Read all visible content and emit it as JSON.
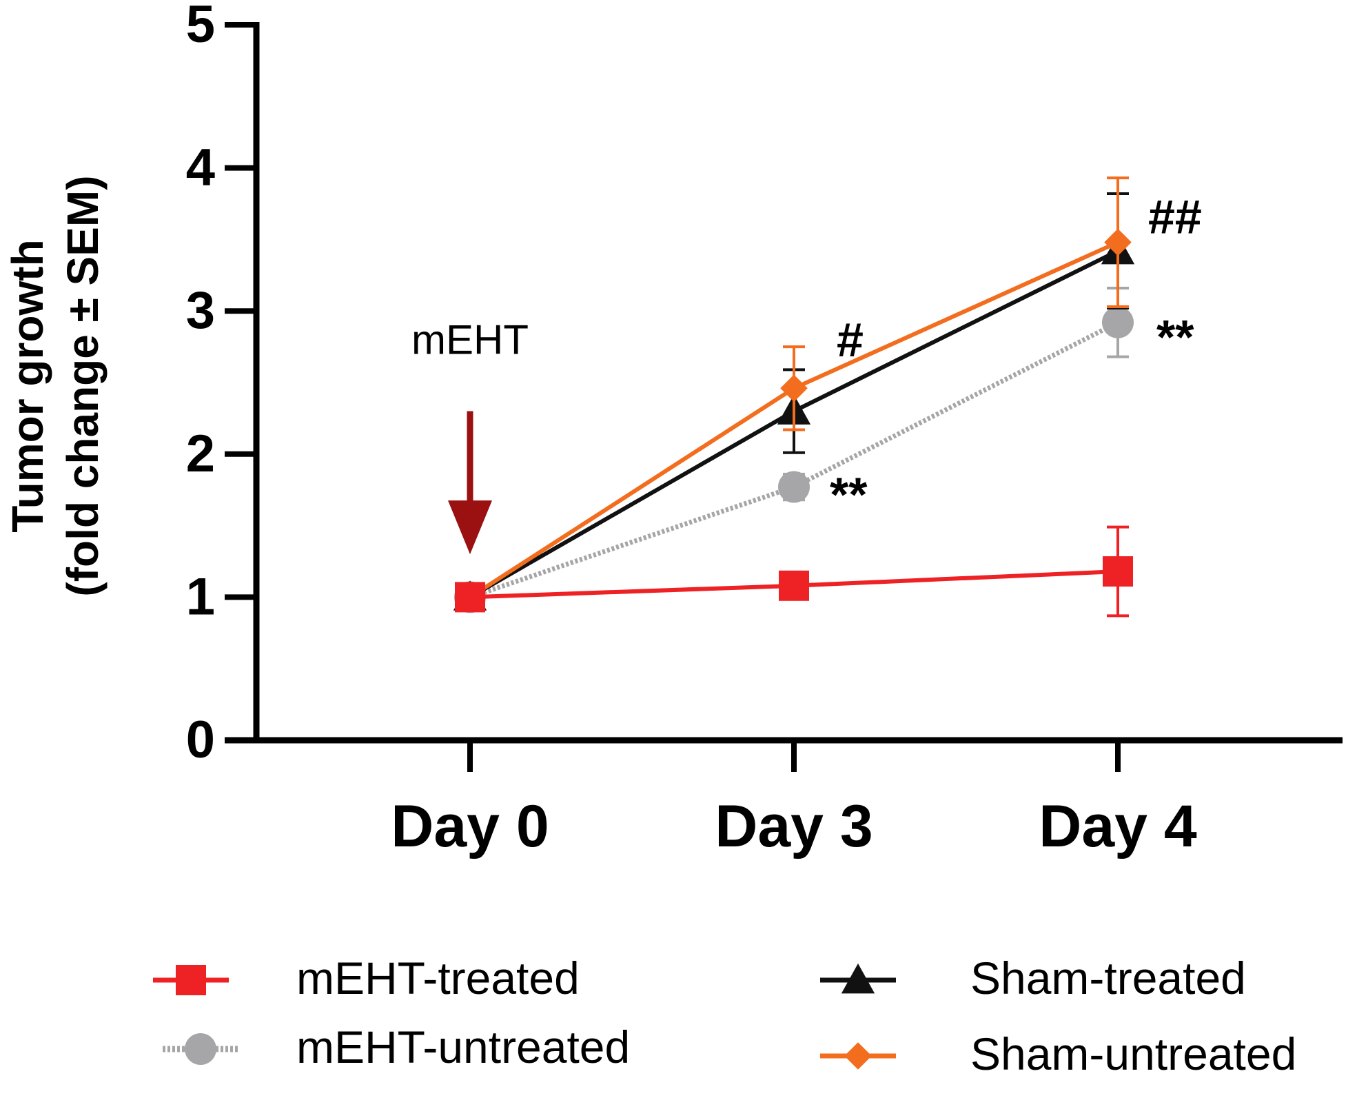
{
  "chart_data": {
    "type": "line",
    "title": "",
    "xlabel": "",
    "ylabel_line1": "Tumor growth",
    "ylabel_line2": "(fold change ± SEM)",
    "ylim": [
      0,
      5
    ],
    "yticks": [
      "0",
      "1",
      "2",
      "3",
      "4",
      "5"
    ],
    "categories": [
      "Day 0",
      "Day 3",
      "Day 4"
    ],
    "series": [
      {
        "key": "mEHT-untreated",
        "name": "mEHT-untreated",
        "color": "#a6a6a8",
        "marker": "circle",
        "values": [
          1.0,
          1.77,
          2.92
        ],
        "errors": [
          0.03,
          0.09,
          0.24
        ]
      },
      {
        "key": "sham-treated",
        "name": "Sham-treated",
        "color": "#111111",
        "marker": "triangle",
        "values": [
          1.0,
          2.3,
          3.42
        ],
        "errors": [
          0.03,
          0.29,
          0.4
        ]
      },
      {
        "key": "sham-untreated",
        "name": "Sham-untreated",
        "color": "#f36d1e",
        "marker": "diamond",
        "values": [
          1.0,
          2.46,
          3.48
        ],
        "errors": [
          0.03,
          0.29,
          0.45
        ]
      },
      {
        "key": "mEHT-treated",
        "name": "mEHT-treated",
        "color": "#ee2124",
        "marker": "square",
        "values": [
          1.0,
          1.08,
          1.18
        ],
        "errors": [
          0.03,
          0.03,
          0.31
        ]
      }
    ],
    "annotations": [
      {
        "key": "arrow-label",
        "text": "mEHT",
        "category": 0,
        "y": 2.8
      },
      {
        "key": "sig-hash-day3",
        "text": "#",
        "category": 1,
        "y": 2.8
      },
      {
        "key": "sig-star-day3",
        "text": "**",
        "category": 1,
        "y": 1.72
      },
      {
        "key": "sig-hash-day4",
        "text": "##",
        "category": 2,
        "y": 3.66
      },
      {
        "key": "sig-star-day4",
        "text": "**",
        "category": 2,
        "y": 2.82
      }
    ],
    "arrow": {
      "category": 0,
      "y_top": 2.3,
      "y_tip": 1.3,
      "color": "#9b1010"
    },
    "legend": {
      "placement": "bottom",
      "entries": [
        {
          "series": "mEHT-treated",
          "label": "mEHT-treated"
        },
        {
          "series": "sham-treated",
          "label": "Sham-treated"
        },
        {
          "series": "mEHT-untreated",
          "label": "mEHT-untreated"
        },
        {
          "series": "sham-untreated",
          "label": "Sham-untreated"
        }
      ]
    }
  }
}
